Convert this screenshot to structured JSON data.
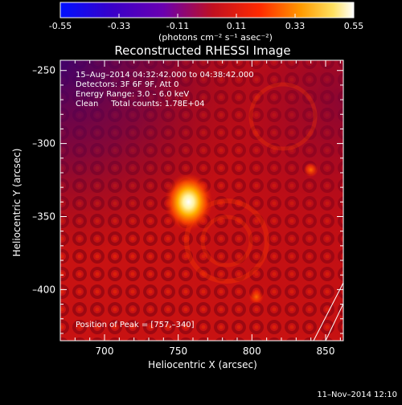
{
  "colorbar": {
    "ticks": [
      "-0.55",
      "-0.33",
      "-0.11",
      "0.11",
      "0.33",
      "0.55"
    ],
    "tick_values": [
      -0.55,
      -0.33,
      -0.11,
      0.11,
      0.33,
      0.55
    ],
    "range": [
      -0.55,
      0.55
    ],
    "units": "(photons cm⁻² s⁻¹ asec⁻²)",
    "colormap": "rainbow-hot (blue-purple-red-orange-yellow-white)"
  },
  "image": {
    "title": "Reconstructed RHESSI Image",
    "annotations": [
      "15–Aug–2014 04:32:42.000 to 04:38:42.000",
      "Detectors: 3F 6F 9F, Att 0",
      "Energy Range: 3.0 – 6.0 keV",
      "Clean     Total counts: 1.78E+04"
    ],
    "peak_label": "Position of Peak = [757,–340]",
    "footer_date": "11–Nov–2014 12:10"
  },
  "chart_data": {
    "type": "heatmap",
    "title": "Reconstructed RHESSI Image",
    "xlabel": "Heliocentric X (arcsec)",
    "ylabel": "Heliocentric Y (arcsec)",
    "xlim": [
      670,
      862
    ],
    "ylim": [
      -435,
      -243
    ],
    "x_ticks": [
      700,
      750,
      800,
      850
    ],
    "x_tick_labels": [
      "700",
      "750",
      "800",
      "850"
    ],
    "y_ticks": [
      -250,
      -300,
      -350,
      -400
    ],
    "y_tick_labels": [
      "–250",
      "–300",
      "–350",
      "–400"
    ],
    "peak": {
      "x": 757,
      "y": -340,
      "value": 0.55
    },
    "secondary_sources": [
      {
        "x": 840,
        "y": -318,
        "value": 0.38
      },
      {
        "x": 803,
        "y": -405,
        "value": 0.3
      }
    ],
    "background_level": 0.18,
    "colors": {
      "low": "#2000a0",
      "mid": "#cc1010",
      "high": "#ffffff",
      "background": "#000000"
    }
  }
}
